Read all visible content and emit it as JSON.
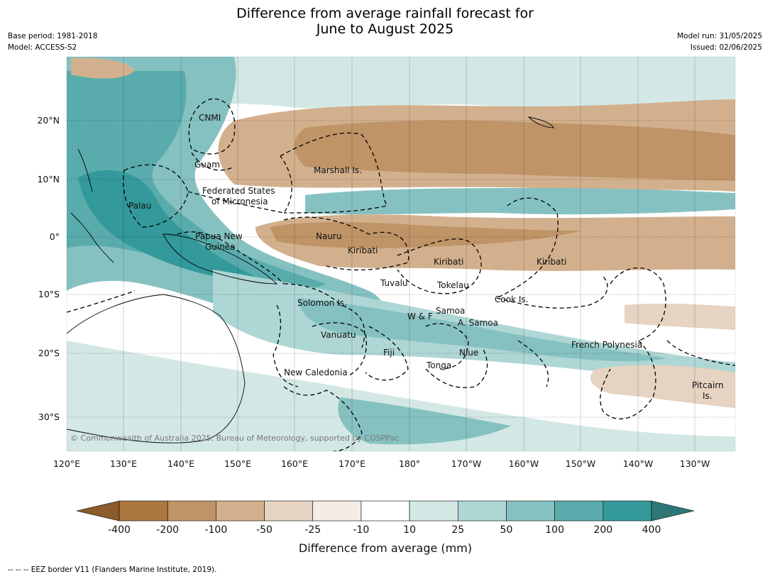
{
  "header": {
    "title_line1": "Difference from average rainfall forecast for",
    "title_line2": "June to August 2025",
    "base_period": "Base period: 1981-2018",
    "model": "Model: ACCESS-S2",
    "model_run": "Model run: 31/05/2025",
    "issued": "Issued: 02/06/2025"
  },
  "map": {
    "lon_labels": [
      "120°E",
      "130°E",
      "140°E",
      "150°E",
      "160°E",
      "170°E",
      "180°",
      "170°W",
      "160°W",
      "150°W",
      "140°W",
      "130°W"
    ],
    "lat_labels": [
      "20°N",
      "10°N",
      "0°",
      "10°S",
      "20°S",
      "30°S"
    ],
    "copyright": "© Commonwealth of Australia 2025, Bureau of Meteorology, supported by COSPPac",
    "regions": [
      {
        "name": "CNMI"
      },
      {
        "name": "Guam"
      },
      {
        "name": "Marshall Is."
      },
      {
        "name": "Federated States"
      },
      {
        "name": "of Micronesia"
      },
      {
        "name": "Palau"
      },
      {
        "name": "Papua New"
      },
      {
        "name": "Guinea"
      },
      {
        "name": "Nauru"
      },
      {
        "name": "Kiribati"
      },
      {
        "name": "Kiribati"
      },
      {
        "name": "Kiribati"
      },
      {
        "name": "Tuvalu"
      },
      {
        "name": "Tokelau"
      },
      {
        "name": "Cook Is."
      },
      {
        "name": "Solomon Is."
      },
      {
        "name": "Samoa"
      },
      {
        "name": "W & F"
      },
      {
        "name": "A. Samoa"
      },
      {
        "name": "Vanuatu"
      },
      {
        "name": "Fiji"
      },
      {
        "name": "Niue"
      },
      {
        "name": "Tonga"
      },
      {
        "name": "French Polynesia"
      },
      {
        "name": "New Caledonia"
      },
      {
        "name": "Pitcairn"
      },
      {
        "name": "Is."
      }
    ]
  },
  "colorbar": {
    "ticks": [
      "-400",
      "-200",
      "-100",
      "-50",
      "-25",
      "-10",
      "10",
      "25",
      "50",
      "100",
      "200",
      "400"
    ],
    "colors": [
      "#8c5a2b",
      "#ac773e",
      "#bf9467",
      "#d3b08d",
      "#e6d3c1",
      "#f3ede6",
      "#ffffff",
      "#d3e8e5",
      "#aed6d5",
      "#86c1c1",
      "#5aacac",
      "#33999a",
      "#2f7777"
    ],
    "title": "Difference from average (mm)"
  },
  "footer": {
    "eez_note": "--  --  -- EEZ border V11 (Flanders Marine Institute, 2019)."
  }
}
